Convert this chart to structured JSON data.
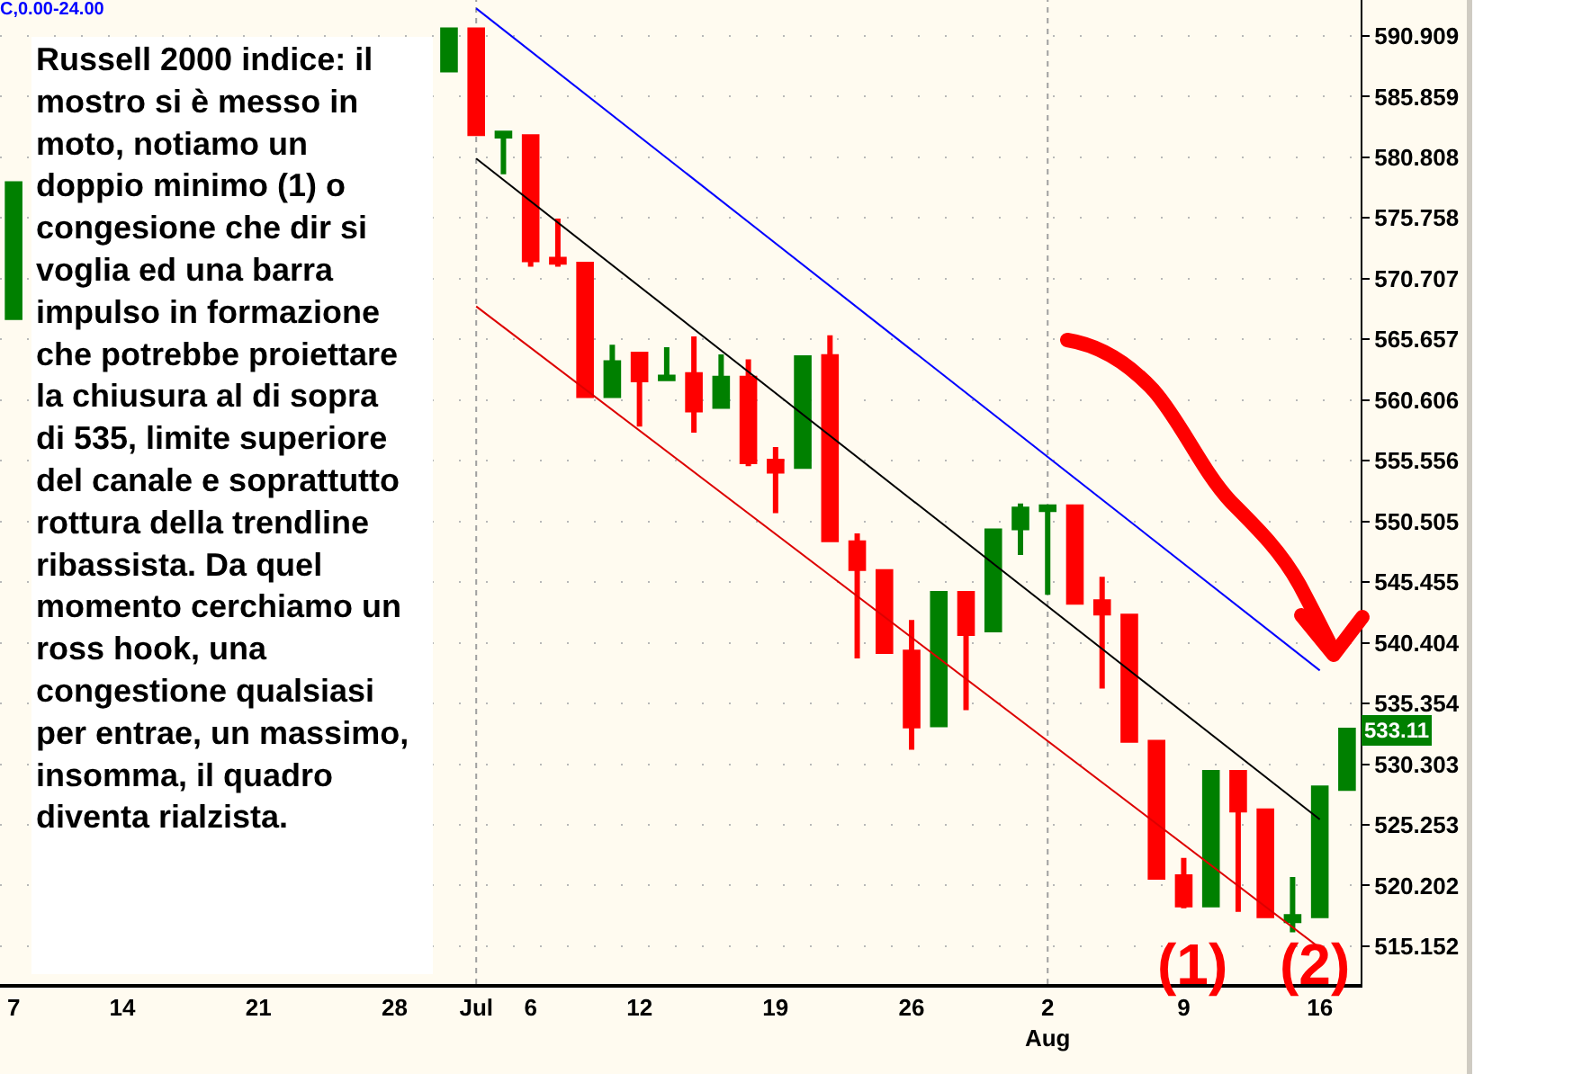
{
  "chart_data": {
    "type": "candlestick",
    "title": "C,0.00-24.00",
    "categories": [
      "7",
      null,
      null,
      null,
      "14",
      null,
      null,
      null,
      null,
      "21",
      null,
      null,
      null,
      null,
      "28",
      null,
      null,
      "Jul",
      null,
      "6",
      null,
      null,
      null,
      "12",
      null,
      null,
      null,
      null,
      "19",
      null,
      null,
      null,
      null,
      "26",
      null,
      null,
      null,
      null,
      "2\nAug",
      null,
      null,
      null,
      null,
      "9",
      null,
      null,
      null,
      null,
      "16",
      null
    ],
    "ohlc": [
      [
        567.5,
        578.6,
        567.5,
        578.6
      ],
      null,
      null,
      null,
      null,
      null,
      null,
      null,
      null,
      null,
      null,
      null,
      null,
      null,
      null,
      null,
      [
        588.1,
        591.4,
        587.9,
        591.4
      ],
      [
        591.4,
        591.4,
        582.6,
        582.8
      ],
      [
        582.6,
        583.0,
        579.4,
        582.8
      ],
      [
        582.5,
        582.5,
        571.7,
        572.3
      ],
      [
        572.3,
        575.7,
        571.7,
        572.1
      ],
      [
        571.9,
        571.9,
        560.9,
        561.0
      ],
      [
        561.0,
        565.2,
        560.9,
        563.7
      ],
      [
        564.4,
        564.4,
        558.4,
        562.3
      ],
      [
        562.4,
        565.0,
        562.3,
        562.5
      ],
      [
        562.7,
        565.9,
        557.9,
        559.8
      ],
      [
        560.1,
        564.4,
        560.0,
        562.4
      ],
      [
        562.4,
        564.0,
        555.1,
        555.5
      ],
      [
        555.5,
        556.7,
        551.2,
        554.7
      ],
      [
        555.1,
        564.1,
        555.0,
        564.1
      ],
      [
        564.2,
        566.0,
        548.8,
        549.0
      ],
      [
        548.7,
        549.5,
        539.1,
        546.6
      ],
      [
        546.3,
        546.3,
        539.6,
        539.7
      ],
      [
        539.6,
        542.3,
        531.5,
        533.5
      ],
      [
        533.6,
        544.5,
        533.5,
        544.5
      ],
      [
        544.5,
        544.5,
        534.8,
        541.2
      ],
      [
        541.5,
        549.7,
        541.5,
        549.7
      ],
      [
        550.0,
        552.0,
        547.7,
        551.5
      ],
      [
        551.5,
        551.9,
        544.4,
        551.7
      ],
      [
        551.7,
        551.9,
        543.6,
        543.8
      ],
      [
        543.8,
        545.9,
        536.6,
        542.9
      ],
      [
        542.6,
        542.6,
        532.3,
        532.3
      ],
      [
        532.1,
        532.3,
        520.8,
        520.9
      ],
      [
        520.9,
        522.5,
        518.3,
        518.6
      ],
      [
        518.6,
        529.6,
        518.6,
        529.6
      ],
      [
        529.6,
        529.6,
        518.0,
        526.5
      ],
      [
        526.4,
        526.4,
        517.6,
        517.7
      ],
      [
        517.3,
        520.9,
        516.3,
        517.6
      ],
      [
        517.7,
        528.3,
        517.7,
        528.3
      ],
      [
        528.3,
        533.2,
        528.3,
        533.11
      ]
    ],
    "colors": [
      "#008000",
      null,
      null,
      null,
      null,
      null,
      null,
      null,
      null,
      null,
      null,
      null,
      null,
      null,
      null,
      null,
      "#008000",
      "#ff0000",
      "#008000",
      "#ff0000",
      "#ff0000",
      "#ff0000",
      "#008000",
      "#ff0000",
      "#008000",
      "#ff0000",
      "#008000",
      "#ff0000",
      "#ff0000",
      "#008000",
      "#ff0000",
      "#ff0000",
      "#ff0000",
      "#ff0000",
      "#008000",
      "#ff0000",
      "#008000",
      "#008000",
      "#008000",
      "#ff0000",
      "#ff0000",
      "#ff0000",
      "#ff0000",
      "#ff0000",
      "#008000",
      "#ff0000",
      "#ff0000",
      "#008000",
      "#008000",
      "#008000"
    ],
    "series": [
      {
        "type": "line",
        "x": [
          "Jul",
          "16"
        ],
        "values": [
          593.2,
          538.1
        ],
        "color": "#0000ff"
      },
      {
        "type": "line",
        "x": [
          "Jul",
          "16"
        ],
        "values": [
          580.7,
          525.7
        ],
        "color": "#000000"
      },
      {
        "type": "line",
        "x": [
          "Jul",
          "16"
        ],
        "values": [
          568.4,
          515.0
        ],
        "color": "#dd0000"
      }
    ],
    "ylim": [
      512,
      593.9
    ],
    "yticks": [
      515.152,
      520.202,
      525.253,
      530.303,
      535.354,
      540.404,
      545.455,
      550.505,
      555.556,
      560.606,
      565.657,
      570.707,
      575.758,
      580.808,
      585.859,
      590.909
    ],
    "grid": "y",
    "ref_lines": [
      {
        "axis": "x",
        "value": "Jul",
        "color": "#a0a0a0",
        "line_style": "dotted"
      },
      {
        "axis": "x",
        "value": "2\nAug",
        "color": "#a0a0a0",
        "line_style": "dotted"
      }
    ],
    "annotations": [
      "Russell 2000 indice: il\nmostro si è messo in\nmoto, notiamo un\ndoppio minimo (1) o\ncongesione che dir si\nvoglia ed una barra\nimpulso in formazione\nche potrebbe proiettare\nla chiusura al di sopra\ndi 535, limite superiore\ndel canale e soprattutto\nrottura della trendline\nribassista. Da quel\nmomento cerchiamo un\nross hook, una\ncongestione qualsiasi\nper entrae, un massimo,\ninsomma, il quadro\ndiventa rialzista.",
      "(1)",
      "(2)",
      {
        "text": "533.11",
        "y": 533.11
      }
    ]
  }
}
